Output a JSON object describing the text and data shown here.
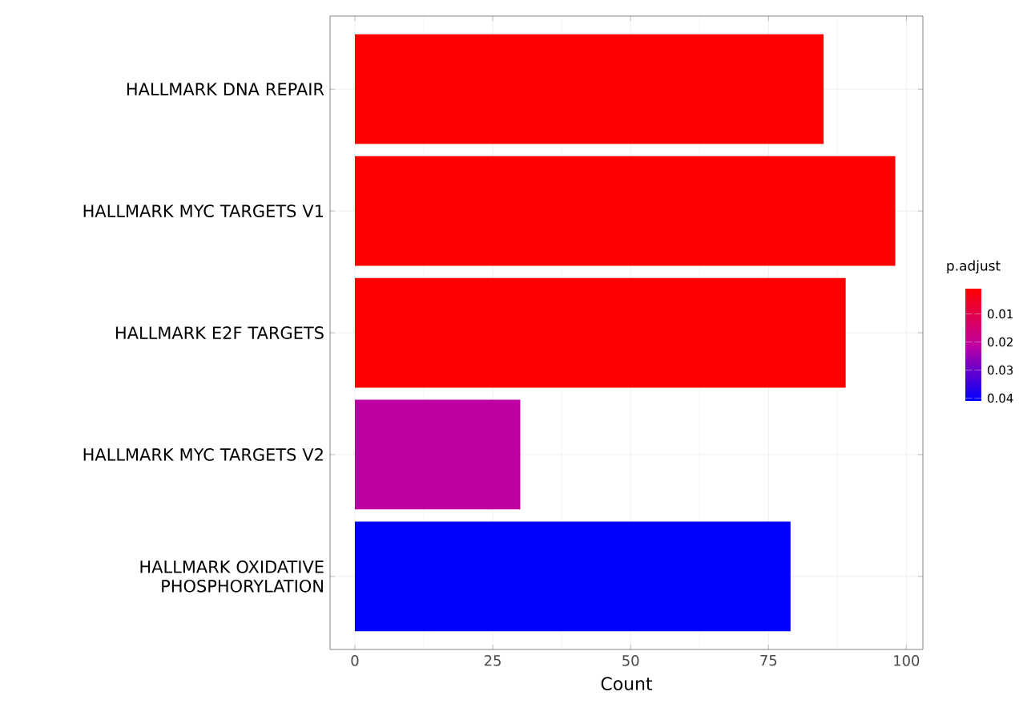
{
  "chart_data": {
    "type": "bar",
    "orientation": "horizontal",
    "categories": [
      "HALLMARK DNA REPAIR",
      "HALLMARK MYC TARGETS V1",
      "HALLMARK E2F TARGETS",
      "HALLMARK MYC TARGETS V2",
      "HALLMARK OXIDATIVE PHOSPHORYLATION"
    ],
    "values": [
      85,
      98,
      89,
      30,
      79
    ],
    "colors": [
      "#ff0000",
      "#ff0000",
      "#ff0000",
      "#bf00a0",
      "#0000ff"
    ],
    "xlabel": "Count",
    "xlim": [
      -4.5,
      103
    ],
    "xticks": [
      0,
      25,
      50,
      75,
      100
    ],
    "grid": true,
    "clabel": "p.adjust",
    "clim": [
      0.001,
      0.041
    ],
    "cticks": [
      0.01,
      0.02,
      0.03,
      0.04
    ]
  }
}
